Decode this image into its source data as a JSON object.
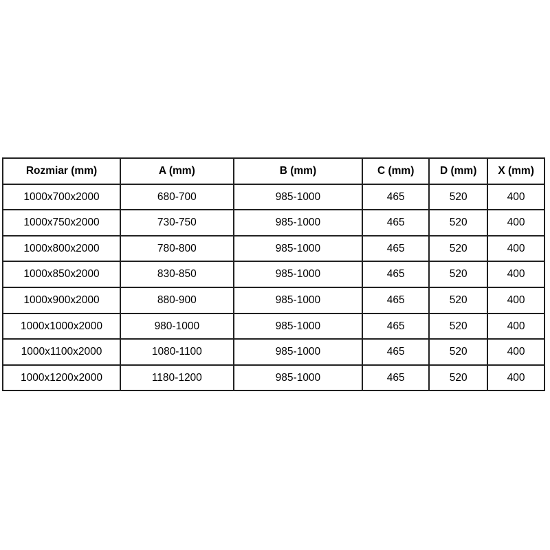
{
  "page": {
    "background_color": "#ffffff",
    "text_color": "#000000",
    "border_color": "#212121"
  },
  "table": {
    "headers": [
      "Rozmiar (mm)",
      "A (mm)",
      "B (mm)",
      "C (mm)",
      "D (mm)",
      "X (mm)"
    ],
    "rows": [
      [
        "1000x700x2000",
        "680-700",
        "985-1000",
        "465",
        "520",
        "400"
      ],
      [
        "1000x750x2000",
        "730-750",
        "985-1000",
        "465",
        "520",
        "400"
      ],
      [
        "1000x800x2000",
        "780-800",
        "985-1000",
        "465",
        "520",
        "400"
      ],
      [
        "1000x850x2000",
        "830-850",
        "985-1000",
        "465",
        "520",
        "400"
      ],
      [
        "1000x900x2000",
        "880-900",
        "985-1000",
        "465",
        "520",
        "400"
      ],
      [
        "1000x1000x2000",
        "980-1000",
        "985-1000",
        "465",
        "520",
        "400"
      ],
      [
        "1000x1100x2000",
        "1080-1100",
        "985-1000",
        "465",
        "520",
        "400"
      ],
      [
        "1000x1200x2000",
        "1180-1200",
        "985-1000",
        "465",
        "520",
        "400"
      ]
    ]
  },
  "chart_data": {
    "type": "table",
    "title": "",
    "columns": [
      "Rozmiar (mm)",
      "A (mm)",
      "B (mm)",
      "C (mm)",
      "D (mm)",
      "X (mm)"
    ],
    "rows": [
      [
        "1000x700x2000",
        "680-700",
        "985-1000",
        "465",
        "520",
        "400"
      ],
      [
        "1000x750x2000",
        "730-750",
        "985-1000",
        "465",
        "520",
        "400"
      ],
      [
        "1000x800x2000",
        "780-800",
        "985-1000",
        "465",
        "520",
        "400"
      ],
      [
        "1000x850x2000",
        "830-850",
        "985-1000",
        "465",
        "520",
        "400"
      ],
      [
        "1000x900x2000",
        "880-900",
        "985-1000",
        "465",
        "520",
        "400"
      ],
      [
        "1000x1000x2000",
        "980-1000",
        "985-1000",
        "465",
        "520",
        "400"
      ],
      [
        "1000x1100x2000",
        "1080-1100",
        "985-1000",
        "465",
        "520",
        "400"
      ],
      [
        "1000x1200x2000",
        "1180-1200",
        "985-1000",
        "465",
        "520",
        "400"
      ]
    ]
  }
}
